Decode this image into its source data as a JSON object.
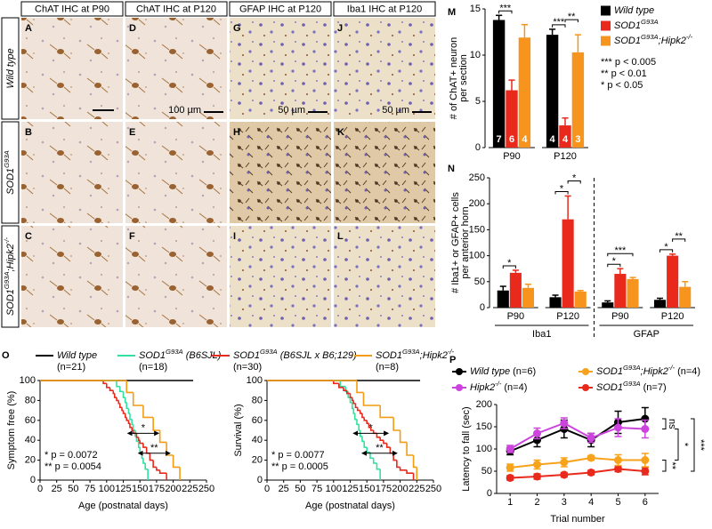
{
  "micrographs": {
    "columns": [
      "ChAT IHC at P90",
      "ChAT IHC at P120",
      "GFAP IHC at P120",
      "Iba1 IHC at P120"
    ],
    "rows": [
      "Wild type",
      "SOD1G93A",
      "SOD1G93A;Hipk2-/-"
    ],
    "panels": [
      [
        "A",
        "D",
        "G",
        "J"
      ],
      [
        "B",
        "E",
        "H",
        "K"
      ],
      [
        "C",
        "F",
        "I",
        "L"
      ]
    ],
    "scale_bars": [
      "100 µm",
      "50 µm",
      "50 µm"
    ]
  },
  "chart_data": [
    {
      "type": "bar",
      "panel": "M",
      "ylabel": [
        "# of ChAT+ neuron",
        "per section"
      ],
      "categories": [
        "P90",
        "P120"
      ],
      "ylim": [
        0,
        15
      ],
      "yticks": [
        0,
        5,
        10,
        15
      ],
      "series": [
        {
          "name": "Wild type",
          "color": "#000000",
          "values": [
            13.8,
            12.2
          ],
          "errors": [
            0.5,
            0.6
          ],
          "n": [
            7,
            4
          ]
        },
        {
          "name": "SOD1G93A",
          "color": "#e8291c",
          "values": [
            6.2,
            2.4
          ],
          "errors": [
            1.1,
            0.8
          ],
          "n": [
            6,
            4
          ]
        },
        {
          "name": "SOD1G93A;Hipk2-/-",
          "color": "#f7941d",
          "values": [
            11.9,
            10.3
          ],
          "errors": [
            1.4,
            1.9
          ],
          "n": [
            4,
            3
          ]
        }
      ],
      "significance": [
        "***",
        "***",
        "**"
      ],
      "notes": [
        "*** p < 0.005",
        "** p < 0.01",
        "* p < 0.05"
      ]
    },
    {
      "type": "bar",
      "panel": "N",
      "ylabel": [
        "# Iba1+ or GFAP+ cells",
        "per anterior horn"
      ],
      "categories": [
        "P90",
        "P120",
        "P90",
        "P120"
      ],
      "groups": [
        "Iba1",
        "GFAP"
      ],
      "ylim": [
        0,
        250
      ],
      "yticks": [
        0,
        50,
        100,
        150,
        200,
        250
      ],
      "series": [
        {
          "color": "#000000",
          "values": [
            33,
            20,
            10,
            15
          ],
          "errors": [
            8,
            4,
            3,
            3
          ]
        },
        {
          "color": "#e8291c",
          "values": [
            67,
            170,
            65,
            100
          ],
          "errors": [
            5,
            45,
            10,
            3
          ]
        },
        {
          "color": "#f7941d",
          "values": [
            38,
            31,
            55,
            40
          ],
          "errors": [
            7,
            2,
            3,
            10
          ]
        }
      ],
      "significance": [
        "*",
        "*",
        "*",
        "***",
        "*",
        "*",
        "**"
      ]
    },
    {
      "type": "step",
      "panel": "O",
      "ylabel": "Symptom free (%)",
      "xlabel": "Age (postnatal days)",
      "xlim": [
        0,
        250
      ],
      "xticks": [
        0,
        25,
        50,
        75,
        100,
        125,
        150,
        175,
        200,
        225,
        250
      ],
      "ylim": [
        0,
        100
      ],
      "yticks": [
        0,
        20,
        40,
        60,
        80,
        100
      ],
      "series": [
        {
          "name": "Wild type",
          "n_label": "(n=21)",
          "color": "#000000",
          "x": [
            0,
            230
          ],
          "values": [
            100,
            100
          ]
        },
        {
          "name": "SOD1G93A (B6SJL)",
          "n_label": "(n=18)",
          "color": "#33e0a0",
          "x": [
            0,
            115,
            120,
            125,
            128,
            130,
            133,
            135,
            138,
            140,
            143,
            145,
            148,
            150,
            153,
            155,
            158,
            162
          ],
          "values": [
            100,
            94,
            89,
            83,
            78,
            72,
            67,
            61,
            56,
            50,
            44,
            39,
            33,
            28,
            22,
            17,
            11,
            0
          ]
        },
        {
          "name": "SOD1G93A (B6SJL x B6;129)",
          "n_label": "(n=30)",
          "color": "#e8291c",
          "x": [
            0,
            95,
            100,
            105,
            110,
            112,
            115,
            118,
            120,
            123,
            125,
            128,
            130,
            133,
            135,
            138,
            140,
            145,
            148,
            150,
            155,
            160,
            165,
            170,
            175,
            180,
            190
          ],
          "values": [
            100,
            97,
            93,
            90,
            87,
            83,
            80,
            77,
            73,
            70,
            67,
            63,
            60,
            57,
            53,
            50,
            47,
            43,
            40,
            37,
            33,
            27,
            20,
            13,
            10,
            7,
            0
          ]
        },
        {
          "name": "SOD1G93A;Hipk2-/-",
          "n_label": "(n=8)",
          "color": "#f39c12",
          "x": [
            0,
            130,
            140,
            155,
            170,
            180,
            190,
            200,
            210
          ],
          "values": [
            100,
            88,
            75,
            63,
            50,
            38,
            25,
            13,
            0
          ]
        }
      ],
      "annotations": [
        "*",
        "**"
      ],
      "notes": [
        "* p = 0.0072",
        "** p = 0.0054"
      ]
    },
    {
      "type": "step",
      "ylabel": "Survival (%)",
      "xlabel": "Age (postnatal days)",
      "xlim": [
        0,
        250
      ],
      "xticks": [
        0,
        25,
        50,
        75,
        100,
        125,
        150,
        175,
        200,
        225,
        250
      ],
      "ylim": [
        0,
        100
      ],
      "yticks": [
        0,
        20,
        40,
        60,
        80,
        100
      ],
      "series": [
        {
          "color": "#000000",
          "x": [
            0,
            230
          ],
          "values": [
            100,
            100
          ]
        },
        {
          "color": "#33e0a0",
          "x": [
            0,
            110,
            118,
            122,
            125,
            128,
            130,
            132,
            135,
            138,
            140,
            143,
            146,
            150,
            155,
            160,
            165,
            170
          ],
          "values": [
            100,
            94,
            89,
            83,
            78,
            72,
            67,
            61,
            56,
            50,
            44,
            39,
            33,
            28,
            22,
            17,
            11,
            0
          ]
        },
        {
          "color": "#e8291c",
          "x": [
            0,
            100,
            108,
            115,
            120,
            125,
            128,
            130,
            133,
            136,
            140,
            143,
            146,
            150,
            153,
            156,
            160,
            165,
            170,
            175,
            180,
            185,
            190,
            195,
            200,
            210,
            220
          ],
          "values": [
            100,
            97,
            93,
            90,
            87,
            83,
            80,
            77,
            73,
            70,
            67,
            63,
            60,
            57,
            53,
            50,
            47,
            43,
            40,
            37,
            33,
            27,
            20,
            13,
            10,
            7,
            0
          ]
        },
        {
          "color": "#f39c12",
          "x": [
            0,
            135,
            145,
            170,
            190,
            200,
            210,
            220,
            225
          ],
          "values": [
            100,
            88,
            75,
            63,
            50,
            38,
            25,
            13,
            0
          ]
        }
      ],
      "annotations": [
        "*",
        "**"
      ],
      "notes": [
        "* p = 0.0077",
        "** p = 0.0005"
      ]
    },
    {
      "type": "line",
      "panel": "P",
      "ylabel": "Latency to fall (sec)",
      "xlabel": "Trial number",
      "x": [
        1,
        2,
        3,
        4,
        5,
        6
      ],
      "xlim": [
        0.5,
        6.5
      ],
      "xticks": [
        1,
        2,
        3,
        4,
        5,
        6
      ],
      "ylim": [
        0,
        200
      ],
      "yticks": [
        0,
        50,
        100,
        150,
        200
      ],
      "series": [
        {
          "name": "Wild type",
          "n_label": "(n=6)",
          "color": "#000000",
          "values": [
            95,
            120,
            145,
            120,
            160,
            168
          ],
          "errors": [
            8,
            15,
            20,
            15,
            25,
            25
          ]
        },
        {
          "name": "Hipk2-/-",
          "n_label": "(n=4)",
          "color": "#cc44dd",
          "values": [
            100,
            135,
            158,
            125,
            148,
            145
          ],
          "errors": [
            8,
            12,
            12,
            10,
            20,
            20
          ]
        },
        {
          "name": "SOD1G93A;Hipk2-/-",
          "n_label": "(n=4)",
          "color": "#f7a21b",
          "values": [
            58,
            65,
            70,
            80,
            75,
            75
          ],
          "errors": [
            8,
            10,
            10,
            5,
            12,
            15
          ]
        },
        {
          "name": "SOD1G93A",
          "n_label": "(n=7)",
          "color": "#e8291c",
          "values": [
            35,
            38,
            42,
            47,
            55,
            50
          ],
          "errors": [
            5,
            6,
            5,
            5,
            6,
            8
          ]
        }
      ],
      "significance": [
        "ns",
        "*",
        "***",
        "**"
      ]
    }
  ]
}
